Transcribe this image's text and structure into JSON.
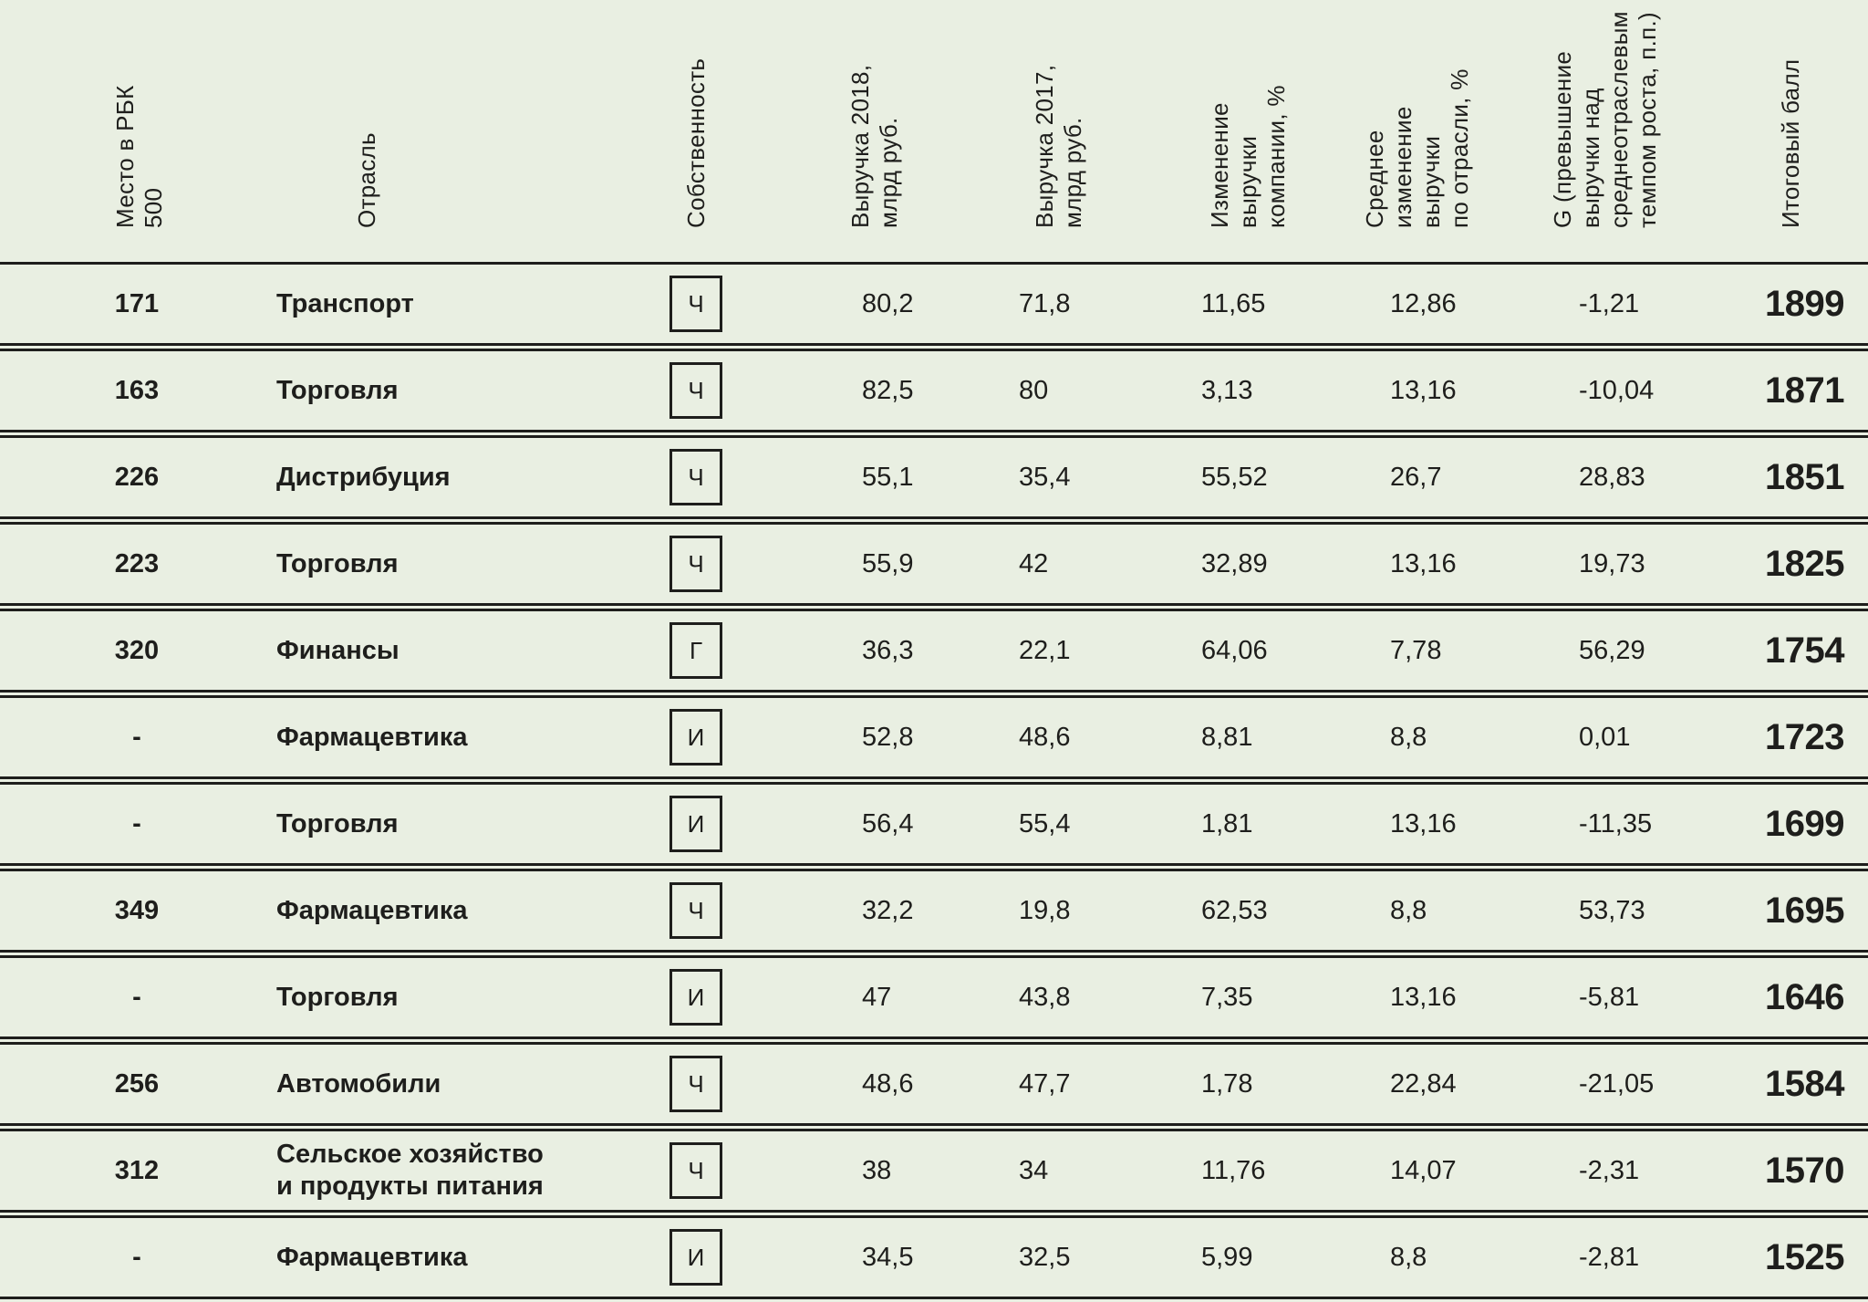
{
  "colors": {
    "background": "#e9efe2",
    "ink": "#1e1e1c"
  },
  "table": {
    "columns": [
      {
        "key": "rank",
        "label": "Место в РБК\n500"
      },
      {
        "key": "industry",
        "label": "Отрасль"
      },
      {
        "key": "ownership",
        "label": "Собственность"
      },
      {
        "key": "rev2018",
        "label": "Выручка 2018,\nмлрд руб."
      },
      {
        "key": "rev2017",
        "label": "Выручка 2017,\nмлрд руб."
      },
      {
        "key": "change",
        "label": "Изменение\nвыручки\nкомпании, %"
      },
      {
        "key": "avg_change",
        "label": "Среднее\nизменение\nвыручки\nпо отрасли, %"
      },
      {
        "key": "g",
        "label": "G (превышение\nвыручки над\nсреднеотраслевым\nтемпом роста, п.п.)"
      },
      {
        "key": "score",
        "label": "Итоговый балл"
      }
    ],
    "rows": [
      {
        "rank": "171",
        "industry": "Транспорт",
        "ownership": "Ч",
        "rev2018": "80,2",
        "rev2017": "71,8",
        "change": "11,65",
        "avg_change": "12,86",
        "g": "-1,21",
        "score": "1899"
      },
      {
        "rank": "163",
        "industry": "Торговля",
        "ownership": "Ч",
        "rev2018": "82,5",
        "rev2017": "80",
        "change": "3,13",
        "avg_change": "13,16",
        "g": "-10,04",
        "score": "1871"
      },
      {
        "rank": "226",
        "industry": "Дистрибуция",
        "ownership": "Ч",
        "rev2018": "55,1",
        "rev2017": "35,4",
        "change": "55,52",
        "avg_change": "26,7",
        "g": "28,83",
        "score": "1851"
      },
      {
        "rank": "223",
        "industry": "Торговля",
        "ownership": "Ч",
        "rev2018": "55,9",
        "rev2017": "42",
        "change": "32,89",
        "avg_change": "13,16",
        "g": "19,73",
        "score": "1825"
      },
      {
        "rank": "320",
        "industry": "Финансы",
        "ownership": "Г",
        "rev2018": "36,3",
        "rev2017": "22,1",
        "change": "64,06",
        "avg_change": "7,78",
        "g": "56,29",
        "score": "1754"
      },
      {
        "rank": "-",
        "industry": "Фармацевтика",
        "ownership": "И",
        "rev2018": "52,8",
        "rev2017": "48,6",
        "change": "8,81",
        "avg_change": "8,8",
        "g": "0,01",
        "score": "1723"
      },
      {
        "rank": "-",
        "industry": "Торговля",
        "ownership": "И",
        "rev2018": "56,4",
        "rev2017": "55,4",
        "change": "1,81",
        "avg_change": "13,16",
        "g": "-11,35",
        "score": "1699"
      },
      {
        "rank": "349",
        "industry": "Фармацевтика",
        "ownership": "Ч",
        "rev2018": "32,2",
        "rev2017": "19,8",
        "change": "62,53",
        "avg_change": "8,8",
        "g": "53,73",
        "score": "1695"
      },
      {
        "rank": "-",
        "industry": "Торговля",
        "ownership": "И",
        "rev2018": "47",
        "rev2017": "43,8",
        "change": "7,35",
        "avg_change": "13,16",
        "g": "-5,81",
        "score": "1646"
      },
      {
        "rank": "256",
        "industry": "Автомобили",
        "ownership": "Ч",
        "rev2018": "48,6",
        "rev2017": "47,7",
        "change": "1,78",
        "avg_change": "22,84",
        "g": "-21,05",
        "score": "1584"
      },
      {
        "rank": "312",
        "industry": "Сельское хозяйство\nи продукты питания",
        "ownership": "Ч",
        "rev2018": "38",
        "rev2017": "34",
        "change": "11,76",
        "avg_change": "14,07",
        "g": "-2,31",
        "score": "1570"
      },
      {
        "rank": "-",
        "industry": "Фармацевтика",
        "ownership": "И",
        "rev2018": "34,5",
        "rev2017": "32,5",
        "change": "5,99",
        "avg_change": "8,8",
        "g": "-2,81",
        "score": "1525"
      }
    ]
  }
}
